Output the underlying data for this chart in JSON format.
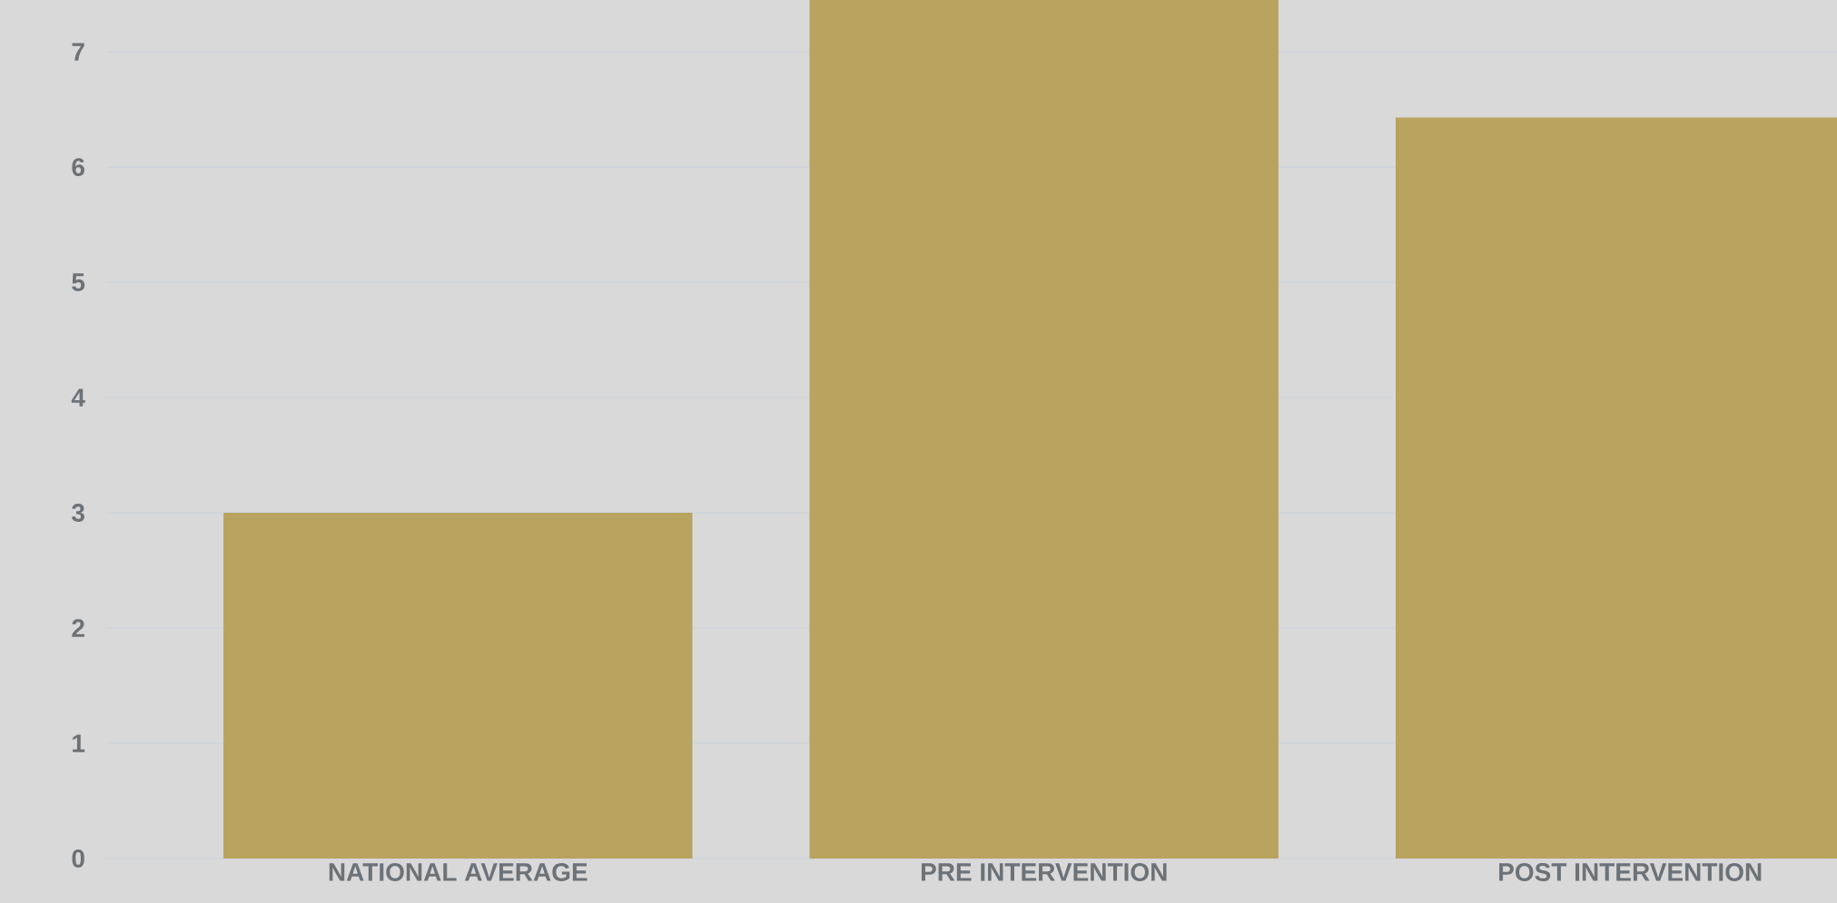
{
  "chart_data": {
    "type": "bar",
    "categories": [
      "NATIONAL AVERAGE",
      "PRE INTERVENTION",
      "POST INTERVENTION"
    ],
    "values": [
      3,
      7.45,
      6.43
    ],
    "color": "#b8a35f",
    "ylim": [
      0,
      7.45
    ],
    "yticks": [
      0,
      1,
      2,
      3,
      4,
      5,
      6,
      7
    ],
    "grid": "y"
  }
}
